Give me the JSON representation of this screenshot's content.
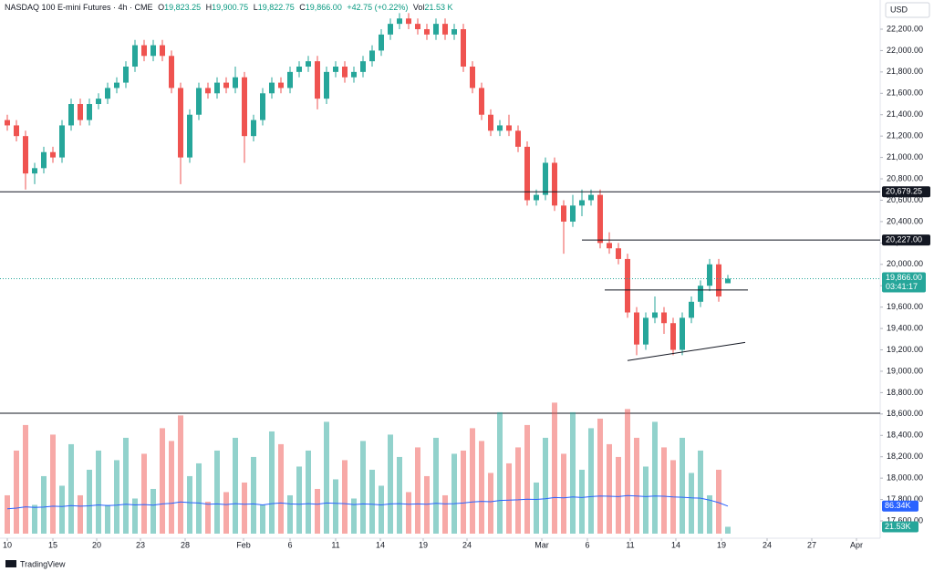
{
  "chart_data": {
    "type": "candlestick",
    "header": {
      "symbol": "NASDAQ 100 E-mini Futures · 4h · CME",
      "open_label": "O",
      "open": "19,823.25",
      "high_label": "H",
      "high": "19,900.75",
      "low_label": "L",
      "low": "19,822.75",
      "close_label": "C",
      "close": "19,866.00",
      "change": "+42.75 (+0.22%)",
      "volume_label": "Vol",
      "volume": "21.53 K"
    },
    "currency": "USD",
    "brand": "TradingView",
    "up_color": "#26a69a",
    "down_color": "#ef5350",
    "ma_color": "#2962ff",
    "xlim": [
      -0.8,
      95.7
    ],
    "xticks": [
      {
        "value": 0,
        "label": "10"
      },
      {
        "value": 5,
        "label": "15"
      },
      {
        "value": 9.8,
        "label": "20"
      },
      {
        "value": 14.6,
        "label": "23"
      },
      {
        "value": 19.5,
        "label": "28"
      },
      {
        "value": 25.9,
        "label": "Feb"
      },
      {
        "value": 31,
        "label": "6"
      },
      {
        "value": 36,
        "label": "11"
      },
      {
        "value": 40.9,
        "label": "14"
      },
      {
        "value": 45.6,
        "label": "19"
      },
      {
        "value": 50.4,
        "label": "24"
      },
      {
        "value": 58.6,
        "label": "Mar"
      },
      {
        "value": 63.6,
        "label": "6"
      },
      {
        "value": 68.3,
        "label": "11"
      },
      {
        "value": 73.3,
        "label": "14"
      },
      {
        "value": 78.3,
        "label": "19"
      },
      {
        "value": 83.3,
        "label": "24"
      },
      {
        "value": 88.2,
        "label": "27"
      },
      {
        "value": 93.1,
        "label": "Apr"
      }
    ],
    "ylim": [
      17438,
      22473
    ],
    "yticks": [
      {
        "value": 17600,
        "label": "17,600.00"
      },
      {
        "value": 17800,
        "label": "17,800.00"
      },
      {
        "value": 18000,
        "label": "18,000.00"
      },
      {
        "value": 18200,
        "label": "18,200.00"
      },
      {
        "value": 18400,
        "label": "18,400.00"
      },
      {
        "value": 18600,
        "label": "18,600.00"
      },
      {
        "value": 18800,
        "label": "18,800.00"
      },
      {
        "value": 19000,
        "label": "19,000.00"
      },
      {
        "value": 19200,
        "label": "19,200.00"
      },
      {
        "value": 19400,
        "label": "19,400.00"
      },
      {
        "value": 19600,
        "label": "19,600.00"
      },
      {
        "value": 19800,
        "label": "19,800.00"
      },
      {
        "value": 20000,
        "label": "20,000.00"
      },
      {
        "value": 20200,
        "label": "20,200.00"
      },
      {
        "value": 20400,
        "label": "20,400.00"
      },
      {
        "value": 20600,
        "label": "20,600.00"
      },
      {
        "value": 20800,
        "label": "20,800.00"
      },
      {
        "value": 21000,
        "label": "21,000.00"
      },
      {
        "value": 21200,
        "label": "21,200.00"
      },
      {
        "value": 21400,
        "label": "21,400.00"
      },
      {
        "value": 21600,
        "label": "21,600.00"
      },
      {
        "value": 21800,
        "label": "21,800.00"
      },
      {
        "value": 22000,
        "label": "22,000.00"
      },
      {
        "value": 22200,
        "label": "22,200.00"
      }
    ],
    "open": [
      21350,
      21300,
      21200,
      20850,
      20900,
      21050,
      21000,
      21300,
      21500,
      21350,
      21500,
      21550,
      21650,
      21700,
      21850,
      22050,
      21950,
      22050,
      21950,
      21650,
      21000,
      21400,
      21650,
      21600,
      21700,
      21650,
      21750,
      21200,
      21350,
      21600,
      21700,
      21650,
      21800,
      21850,
      21900,
      21550,
      21800,
      21850,
      21750,
      21800,
      21900,
      22000,
      22150,
      22250,
      22300,
      22250,
      22200,
      22150,
      22250,
      22150,
      22200,
      21850,
      21650,
      21400,
      21250,
      21300,
      21250,
      21100,
      20600,
      20650,
      20950,
      20550,
      20400,
      20550,
      20600,
      20650,
      20200,
      20150,
      20050,
      19550,
      19250,
      19500,
      19550,
      19450,
      19200,
      19500,
      19650,
      19800,
      20000,
      19823.25
    ],
    "high": [
      21400,
      21350,
      21250,
      20950,
      21100,
      21100,
      21350,
      21550,
      21550,
      21550,
      21600,
      21700,
      21750,
      21900,
      22100,
      22100,
      22100,
      22100,
      22000,
      21700,
      21450,
      21700,
      21700,
      21750,
      21750,
      21850,
      21800,
      21400,
      21650,
      21750,
      21750,
      21850,
      21900,
      21950,
      21950,
      21850,
      21900,
      21900,
      21850,
      21950,
      22050,
      22200,
      22300,
      22350,
      22350,
      22300,
      22250,
      22300,
      22300,
      22250,
      22250,
      21900,
      21700,
      21450,
      21350,
      21400,
      21300,
      21150,
      20700,
      21000,
      21000,
      20600,
      20650,
      20700,
      20700,
      20700,
      20300,
      20200,
      20100,
      19600,
      19550,
      19700,
      19600,
      19500,
      19550,
      19700,
      19850,
      20050,
      20050,
      19900.75
    ],
    "low": [
      21250,
      21150,
      20700,
      20750,
      20850,
      20950,
      20950,
      21250,
      21300,
      21300,
      21450,
      21500,
      21600,
      21650,
      21800,
      21900,
      21900,
      21900,
      21600,
      20750,
      20950,
      21350,
      21550,
      21550,
      21600,
      21600,
      20950,
      21150,
      21300,
      21550,
      21600,
      21600,
      21750,
      21800,
      21450,
      21500,
      21750,
      21700,
      21700,
      21750,
      21850,
      21950,
      22100,
      22200,
      22200,
      22150,
      22100,
      22100,
      22100,
      22100,
      21800,
      21600,
      21350,
      21200,
      21200,
      21200,
      21050,
      20550,
      20550,
      20600,
      20500,
      20100,
      20350,
      20450,
      20550,
      20150,
      20100,
      20000,
      19500,
      19150,
      19200,
      19450,
      19350,
      19150,
      19150,
      19450,
      19600,
      19750,
      19650,
      19822.75
    ],
    "close": [
      21300,
      21200,
      20850,
      20900,
      21050,
      21000,
      21300,
      21500,
      21350,
      21500,
      21550,
      21650,
      21700,
      21850,
      22050,
      21950,
      22050,
      21950,
      21650,
      21000,
      21400,
      21650,
      21600,
      21700,
      21650,
      21750,
      21200,
      21350,
      21600,
      21700,
      21650,
      21800,
      21850,
      21900,
      21550,
      21800,
      21850,
      21750,
      21800,
      21900,
      22000,
      22150,
      22250,
      22300,
      22250,
      22200,
      22150,
      22250,
      22150,
      22200,
      21850,
      21650,
      21400,
      21250,
      21300,
      21250,
      21100,
      20600,
      20650,
      20950,
      20550,
      20400,
      20550,
      20600,
      20650,
      20200,
      20150,
      20050,
      19550,
      19250,
      19500,
      19550,
      19450,
      19200,
      19500,
      19650,
      19800,
      20000,
      19700,
      19866
    ],
    "volume": [
      120,
      260,
      340,
      90,
      180,
      310,
      150,
      280,
      120,
      200,
      260,
      90,
      230,
      300,
      110,
      250,
      140,
      330,
      290,
      370,
      180,
      220,
      100,
      260,
      130,
      300,
      160,
      240,
      90,
      320,
      280,
      120,
      210,
      260,
      140,
      350,
      170,
      230,
      110,
      290,
      200,
      150,
      310,
      240,
      130,
      270,
      180,
      300,
      120,
      250,
      260,
      330,
      290,
      190,
      380,
      220,
      270,
      340,
      160,
      300,
      410,
      250,
      380,
      200,
      330,
      360,
      280,
      240,
      390,
      300,
      210,
      350,
      270,
      230,
      300,
      190,
      260,
      120,
      200,
      21.53
    ],
    "volume_value_labels": {
      "79": "21.53K"
    },
    "volume_ma": [
      78,
      80,
      84,
      82,
      83,
      86,
      85,
      88,
      86,
      87,
      90,
      88,
      89,
      92,
      90,
      91,
      89,
      93,
      95,
      99,
      97,
      96,
      92,
      93,
      91,
      94,
      92,
      93,
      90,
      94,
      96,
      93,
      92,
      94,
      92,
      96,
      95,
      94,
      91,
      93,
      92,
      90,
      93,
      94,
      92,
      93,
      92,
      95,
      93,
      94,
      96,
      99,
      101,
      100,
      104,
      105,
      106,
      108,
      107,
      109,
      113,
      112,
      115,
      113,
      116,
      118,
      117,
      116,
      119,
      118,
      116,
      118,
      117,
      115,
      114,
      112,
      111,
      105,
      97,
      86.34
    ],
    "volume_ma_label": "86.34K",
    "volume_ylim": [
      0,
      414
    ],
    "last_price": {
      "value": 19866,
      "label": "19,866.00",
      "countdown": "03:41:17"
    },
    "levels": [
      {
        "value": 20679.25,
        "label": "20,679.25",
        "from": -0.8
      },
      {
        "value": 20227,
        "label": "20,227.00",
        "from": 63
      }
    ],
    "drawings": [
      {
        "x": [
          65.5,
          81.2
        ],
        "y": [
          19760,
          19760
        ]
      },
      {
        "x": [
          68,
          80.9
        ],
        "y": [
          19100,
          19270
        ]
      }
    ]
  }
}
